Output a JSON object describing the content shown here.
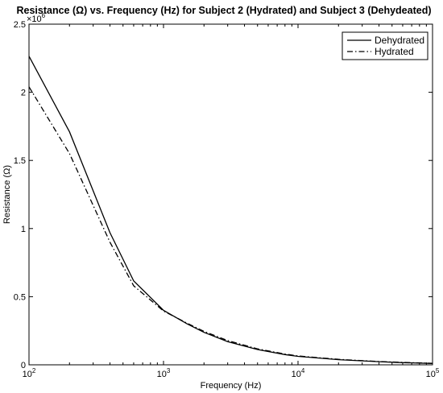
{
  "chart_data": {
    "type": "line",
    "title": "Resistance (Ω) vs. Frequency (Hz) for Subject 2 (Hydrated) and Subject 3 (Dehydeated)",
    "xlabel": "Frequency (Hz)",
    "ylabel": "Resistance (Ω)",
    "xscale": "log",
    "xlim": [
      100,
      100000
    ],
    "ylim": [
      0,
      2500000
    ],
    "x_ticks": [
      {
        "value": 100,
        "base": "10",
        "exp": "2"
      },
      {
        "value": 1000,
        "base": "10",
        "exp": "3"
      },
      {
        "value": 10000,
        "base": "10",
        "exp": "4"
      },
      {
        "value": 100000,
        "base": "10",
        "exp": "5"
      }
    ],
    "y_ticks": [
      {
        "value": 0,
        "label": "0"
      },
      {
        "value": 500000,
        "label": "0.5"
      },
      {
        "value": 1000000,
        "label": "1"
      },
      {
        "value": 1500000,
        "label": "1.5"
      },
      {
        "value": 2000000,
        "label": "2"
      },
      {
        "value": 2500000,
        "label": "2.5"
      }
    ],
    "y_multiplier": {
      "base": "×10",
      "exp": "6"
    },
    "grid": false,
    "legend_position": "top-right",
    "series": [
      {
        "name": "Dehydrated",
        "style": "solid",
        "points": [
          [
            100,
            2265000
          ],
          [
            200,
            1710000
          ],
          [
            400,
            970000
          ],
          [
            600,
            615000
          ],
          [
            1000,
            400000
          ],
          [
            1500,
            300000
          ],
          [
            2000,
            238000
          ],
          [
            3000,
            170000
          ],
          [
            5000,
            112000
          ],
          [
            8000,
            75000
          ],
          [
            10000,
            62000
          ],
          [
            20000,
            38000
          ],
          [
            40000,
            23000
          ],
          [
            60000,
            16000
          ],
          [
            100000,
            10000
          ]
        ]
      },
      {
        "name": "Hydrated",
        "style": "dashdot",
        "points": [
          [
            100,
            2040000
          ],
          [
            200,
            1550000
          ],
          [
            400,
            900000
          ],
          [
            600,
            580000
          ],
          [
            1000,
            395000
          ],
          [
            1500,
            305000
          ],
          [
            2000,
            245000
          ],
          [
            3000,
            178000
          ],
          [
            5000,
            117000
          ],
          [
            8000,
            79000
          ],
          [
            10000,
            65000
          ],
          [
            20000,
            40000
          ],
          [
            40000,
            24500
          ],
          [
            60000,
            17500
          ],
          [
            100000,
            11000
          ]
        ]
      }
    ]
  }
}
